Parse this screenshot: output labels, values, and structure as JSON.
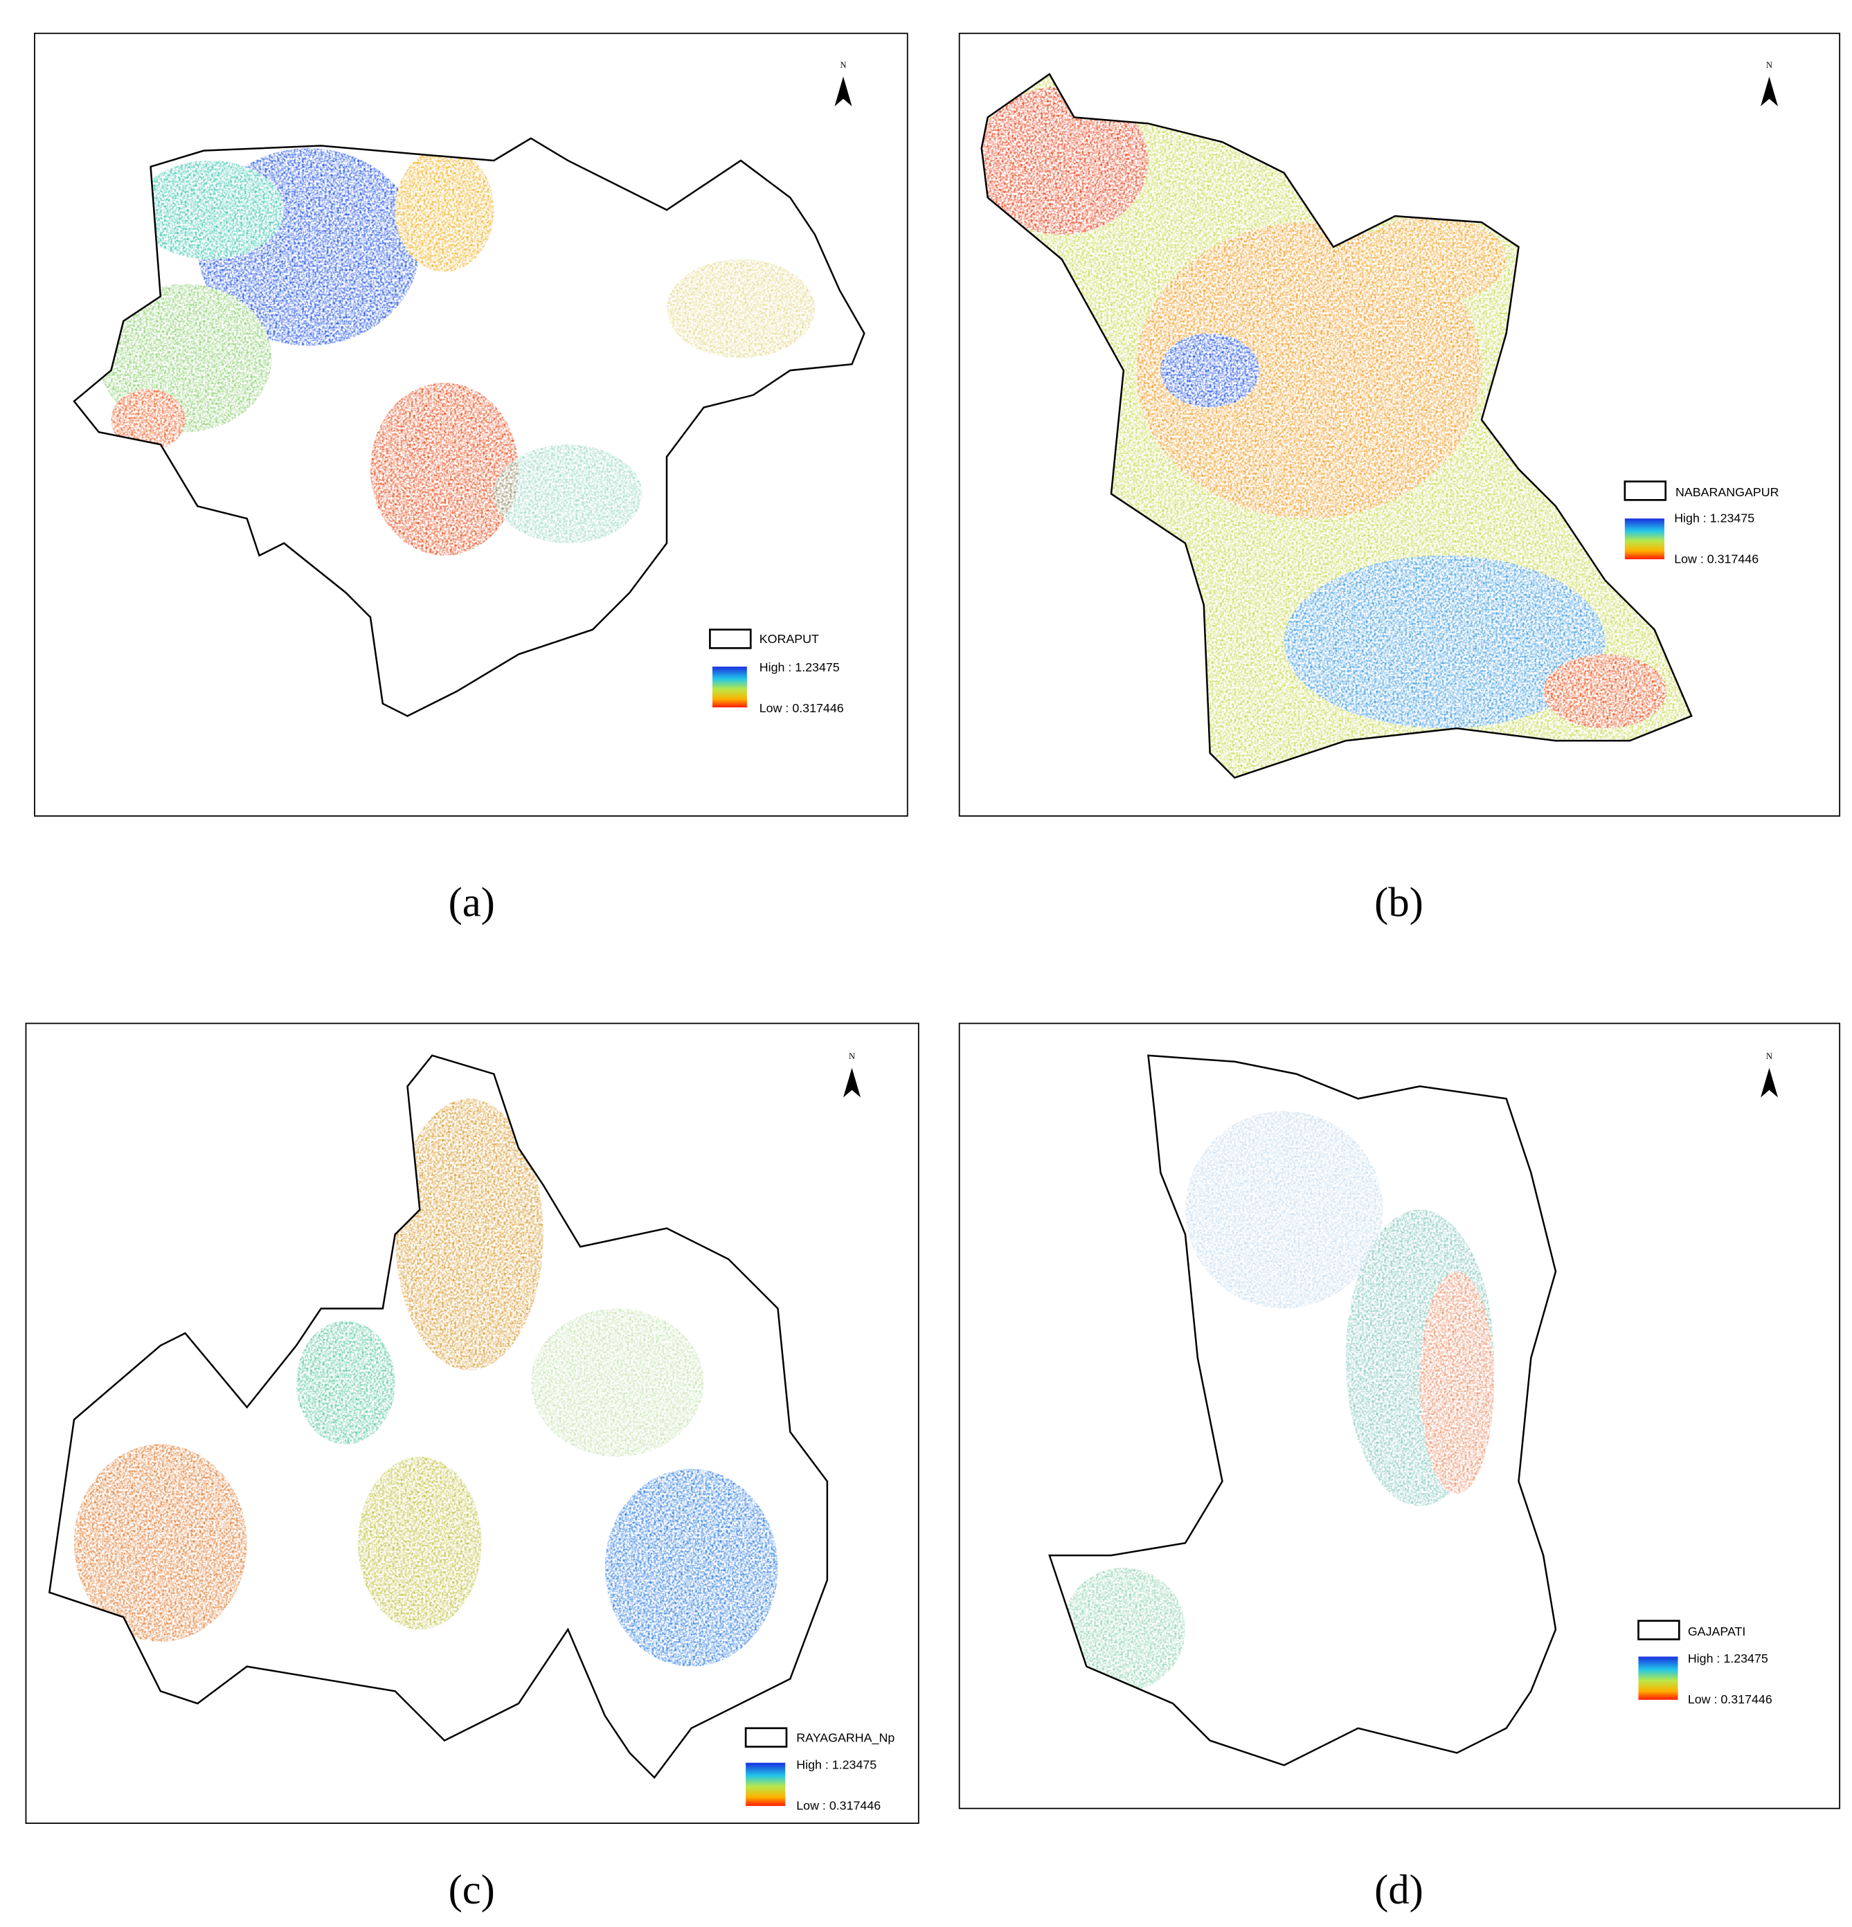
{
  "panels": [
    {
      "district": "KORAPUT",
      "high": "High : 1.23475",
      "low": "Low : 0.317446",
      "north": "N",
      "caption": "(a)"
    },
    {
      "district": "NABARANGAPUR",
      "high": "High : 1.23475",
      "low": "Low : 0.317446",
      "north": "N",
      "caption": "(b)"
    },
    {
      "district": "RAYAGARHA_Np",
      "high": "High : 1.23475",
      "low": "Low : 0.317446",
      "north": "N",
      "caption": "(c)"
    },
    {
      "district": "GAJAPATI",
      "high": "High : 1.23475",
      "low": "Low : 0.317446",
      "north": "N",
      "caption": "(d)"
    }
  ]
}
